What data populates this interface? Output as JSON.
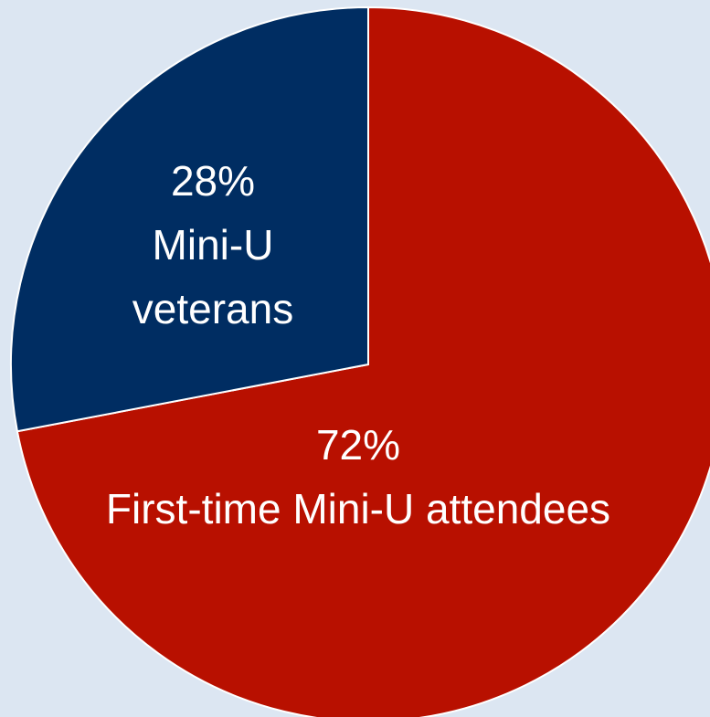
{
  "chart_data": {
    "type": "pie",
    "categories": [
      "First-time Mini-U attendees",
      "Mini-U veterans"
    ],
    "values": [
      72,
      28
    ],
    "value_labels": [
      "72%",
      "28%"
    ],
    "colors": [
      "#b81000",
      "#002d62"
    ]
  }
}
